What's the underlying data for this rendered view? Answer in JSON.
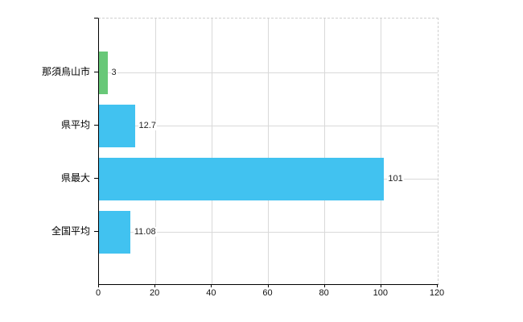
{
  "chart_data": {
    "type": "bar",
    "orientation": "horizontal",
    "title": "",
    "xlabel": "",
    "ylabel": "",
    "categories": [
      "那須烏山市",
      "県平均",
      "県最大",
      "全国平均"
    ],
    "values": [
      3,
      12.7,
      101,
      11.08
    ],
    "value_labels": [
      "3",
      "12.7",
      "101",
      "11.08"
    ],
    "bar_colors": [
      "#68c878",
      "#41c2f0",
      "#41c2f0",
      "#41c2f0"
    ],
    "xlim": [
      0,
      120
    ],
    "x_ticks": [
      0,
      20,
      40,
      60,
      80,
      100,
      120
    ],
    "x_tick_labels": [
      "0",
      "20",
      "40",
      "60",
      "80",
      "100",
      "120"
    ],
    "grid": true,
    "legend": false,
    "colors": {
      "bar_blue": "#41c2f0",
      "bar_green": "#68c878",
      "grid": "#d9d9d9",
      "axis": "#000000",
      "text": "#000000",
      "background": "#ffffff"
    }
  }
}
